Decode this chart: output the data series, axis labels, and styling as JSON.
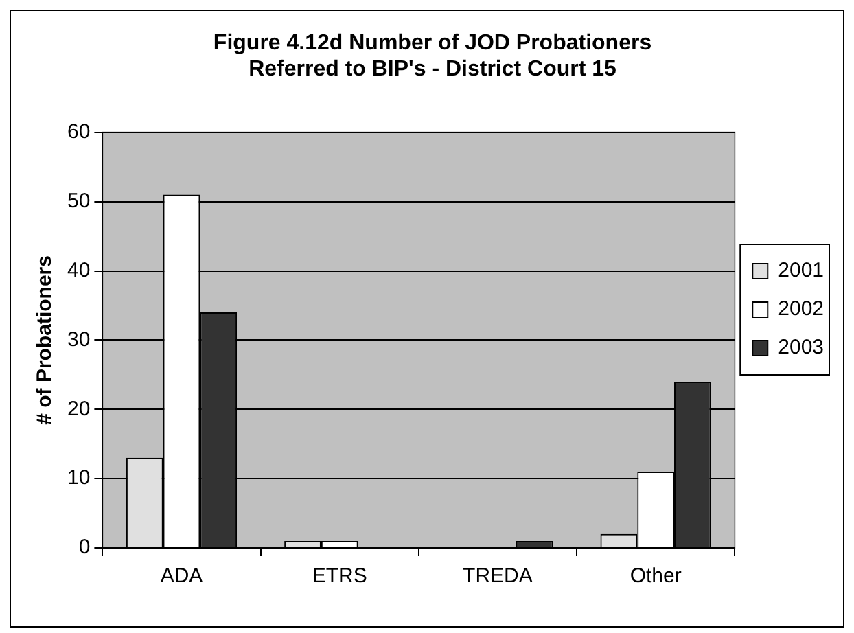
{
  "chart_data": {
    "type": "bar",
    "title": "Figure 4.12d Number of JOD Probationers\nReferred to BIP's - District Court 15",
    "ylabel": "# of Probationers",
    "categories": [
      "ADA",
      "ETRS",
      "TREDA",
      "Other"
    ],
    "series": [
      {
        "name": "2001",
        "color": "#e0e0e0",
        "values": [
          13,
          1,
          0,
          2
        ]
      },
      {
        "name": "2002",
        "color": "#ffffff",
        "values": [
          51,
          1,
          0,
          11
        ]
      },
      {
        "name": "2003",
        "color": "#333333",
        "values": [
          34,
          0,
          1,
          24
        ]
      }
    ],
    "ylim": [
      0,
      60
    ],
    "yticks": [
      0,
      10,
      20,
      30,
      40,
      50,
      60
    ],
    "grid": "y",
    "legend": "right"
  }
}
